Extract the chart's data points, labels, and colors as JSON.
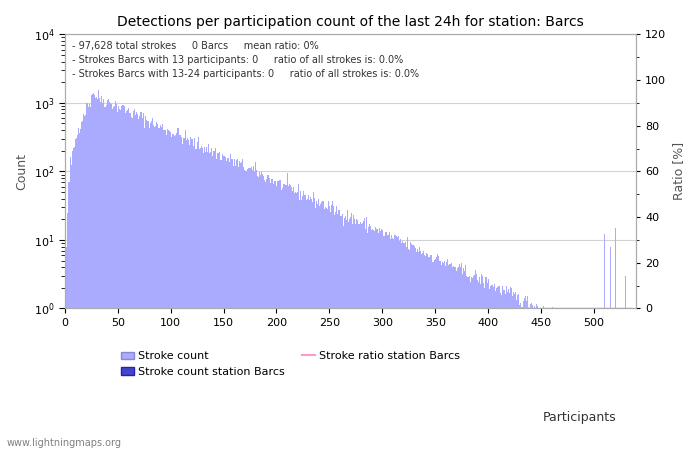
{
  "title": "Detections per participation count of the last 24h for station: Barcs",
  "xlabel": "Participants",
  "ylabel_left": "Count",
  "ylabel_right": "Ratio [%]",
  "annotation_lines": [
    "97,628 total strokes     0 Barcs     mean ratio: 0%",
    "Strokes Barcs with 13 participants: 0     ratio of all strokes is: 0.0%",
    "Strokes Barcs with 13-24 participants: 0     ratio of all strokes is: 0.0%"
  ],
  "watermark": "www.lightningmaps.org",
  "bar_color_light": "#aaaaff",
  "bar_color_dark": "#4444cc",
  "ratio_line_color": "#ff99cc",
  "xlim": [
    0,
    540
  ],
  "ylim_log_min": 1,
  "ylim_log_max": 10000,
  "ylim_right": [
    0,
    120
  ],
  "right_yticks": [
    0,
    20,
    40,
    60,
    80,
    100,
    120
  ],
  "right_ytick_labels": [
    "0",
    "20",
    "40",
    "60",
    "80",
    "100",
    "120"
  ],
  "xticks": [
    0,
    50,
    100,
    150,
    200,
    250,
    300,
    350,
    400,
    450,
    500
  ],
  "legend_labels": [
    "Stroke count",
    "Stroke count station Barcs",
    "Stroke ratio station Barcs"
  ],
  "max_participants": 535,
  "seed": 42,
  "figsize": [
    7.0,
    4.5
  ],
  "dpi": 100
}
